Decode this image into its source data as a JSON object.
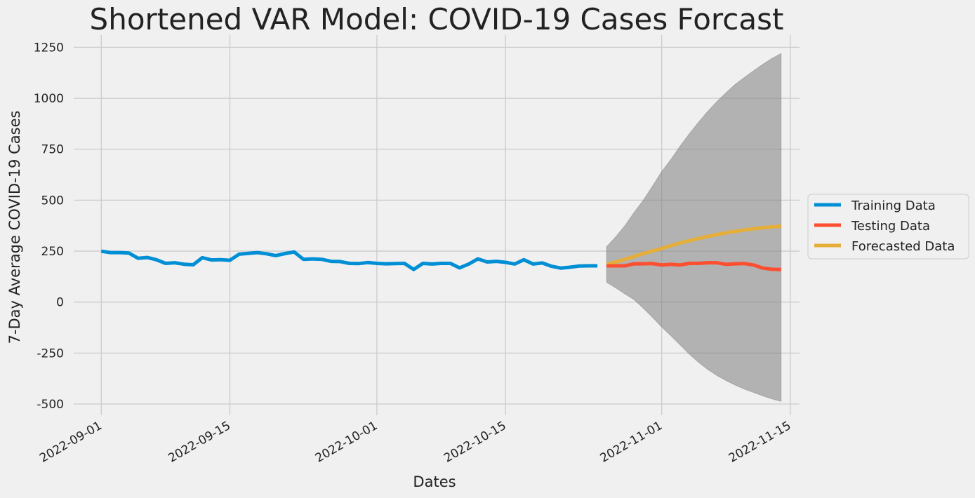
{
  "chart_data": {
    "type": "line",
    "title": "Shortened VAR Model: COVID-19 Cases Forcast",
    "xlabel": "Dates",
    "ylabel": "7-Day Average COVID-19 Cases",
    "x_ticks": [
      "2022-09-01",
      "2022-09-15",
      "2022-10-01",
      "2022-10-15",
      "2022-11-01",
      "2022-11-15"
    ],
    "y_ticks": [
      -500,
      -250,
      0,
      250,
      500,
      750,
      1000,
      1250
    ],
    "xlim": [
      "2022-08-29",
      "2022-11-16"
    ],
    "ylim": [
      -555,
      1310
    ],
    "grid": true,
    "legend_position": "center-right",
    "series": [
      {
        "name": "Training Data",
        "color": "#008fd5",
        "x": [
          "2022-09-01",
          "2022-09-02",
          "2022-09-03",
          "2022-09-04",
          "2022-09-05",
          "2022-09-06",
          "2022-09-07",
          "2022-09-08",
          "2022-09-09",
          "2022-09-10",
          "2022-09-11",
          "2022-09-12",
          "2022-09-13",
          "2022-09-14",
          "2022-09-15",
          "2022-09-16",
          "2022-09-17",
          "2022-09-18",
          "2022-09-19",
          "2022-09-20",
          "2022-09-21",
          "2022-09-22",
          "2022-09-23",
          "2022-09-24",
          "2022-09-25",
          "2022-09-26",
          "2022-09-27",
          "2022-09-28",
          "2022-09-29",
          "2022-09-30",
          "2022-10-01",
          "2022-10-02",
          "2022-10-03",
          "2022-10-04",
          "2022-10-05",
          "2022-10-06",
          "2022-10-07",
          "2022-10-08",
          "2022-10-09",
          "2022-10-10",
          "2022-10-11",
          "2022-10-12",
          "2022-10-13",
          "2022-10-14",
          "2022-10-15",
          "2022-10-16",
          "2022-10-17",
          "2022-10-18",
          "2022-10-19",
          "2022-10-20",
          "2022-10-21",
          "2022-10-22",
          "2022-10-23",
          "2022-10-24",
          "2022-10-25"
        ],
        "values": [
          250,
          243,
          243,
          241,
          215,
          219,
          208,
          190,
          193,
          186,
          183,
          218,
          207,
          208,
          205,
          235,
          239,
          243,
          237,
          228,
          238,
          246,
          210,
          212,
          210,
          200,
          199,
          190,
          189,
          194,
          190,
          188,
          189,
          190,
          160,
          190,
          187,
          190,
          190,
          168,
          187,
          212,
          197,
          200,
          195,
          187,
          208,
          187,
          192,
          176,
          167,
          171,
          177,
          178,
          178
        ]
      },
      {
        "name": "Testing Data",
        "color": "#fc4f30",
        "x": [
          "2022-10-26",
          "2022-10-27",
          "2022-10-28",
          "2022-10-29",
          "2022-10-30",
          "2022-10-31",
          "2022-11-01",
          "2022-11-02",
          "2022-11-03",
          "2022-11-04",
          "2022-11-05",
          "2022-11-06",
          "2022-11-07",
          "2022-11-08",
          "2022-11-09",
          "2022-11-10",
          "2022-11-11",
          "2022-11-12",
          "2022-11-13",
          "2022-11-14"
        ],
        "values": [
          178,
          178,
          178,
          188,
          188,
          189,
          182,
          185,
          182,
          190,
          190,
          193,
          193,
          185,
          188,
          189,
          182,
          167,
          161,
          160
        ]
      },
      {
        "name": "Forecasted Data",
        "color": "#e5ae38",
        "x": [
          "2022-10-26",
          "2022-10-27",
          "2022-10-28",
          "2022-10-29",
          "2022-10-30",
          "2022-10-31",
          "2022-11-01",
          "2022-11-02",
          "2022-11-03",
          "2022-11-04",
          "2022-11-05",
          "2022-11-06",
          "2022-11-07",
          "2022-11-08",
          "2022-11-09",
          "2022-11-10",
          "2022-11-11",
          "2022-11-12",
          "2022-11-13",
          "2022-11-14"
        ],
        "values": [
          185,
          197,
          210,
          224,
          238,
          251,
          263,
          277,
          290,
          301,
          312,
          322,
          331,
          340,
          347,
          354,
          360,
          365,
          369,
          372
        ]
      }
    ],
    "confidence_band": {
      "color": "#808080",
      "x": [
        "2022-10-26",
        "2022-10-27",
        "2022-10-28",
        "2022-10-29",
        "2022-10-30",
        "2022-10-31",
        "2022-11-01",
        "2022-11-02",
        "2022-11-03",
        "2022-11-04",
        "2022-11-05",
        "2022-11-06",
        "2022-11-07",
        "2022-11-08",
        "2022-11-09",
        "2022-11-10",
        "2022-11-11",
        "2022-11-12",
        "2022-11-13",
        "2022-11-14"
      ],
      "upper": [
        272,
        320,
        375,
        440,
        500,
        570,
        640,
        700,
        765,
        825,
        882,
        935,
        983,
        1027,
        1068,
        1102,
        1135,
        1166,
        1195,
        1220
      ],
      "lower": [
        97,
        70,
        40,
        12,
        -30,
        -75,
        -122,
        -165,
        -210,
        -255,
        -295,
        -330,
        -360,
        -385,
        -407,
        -427,
        -443,
        -460,
        -475,
        -487
      ]
    }
  }
}
